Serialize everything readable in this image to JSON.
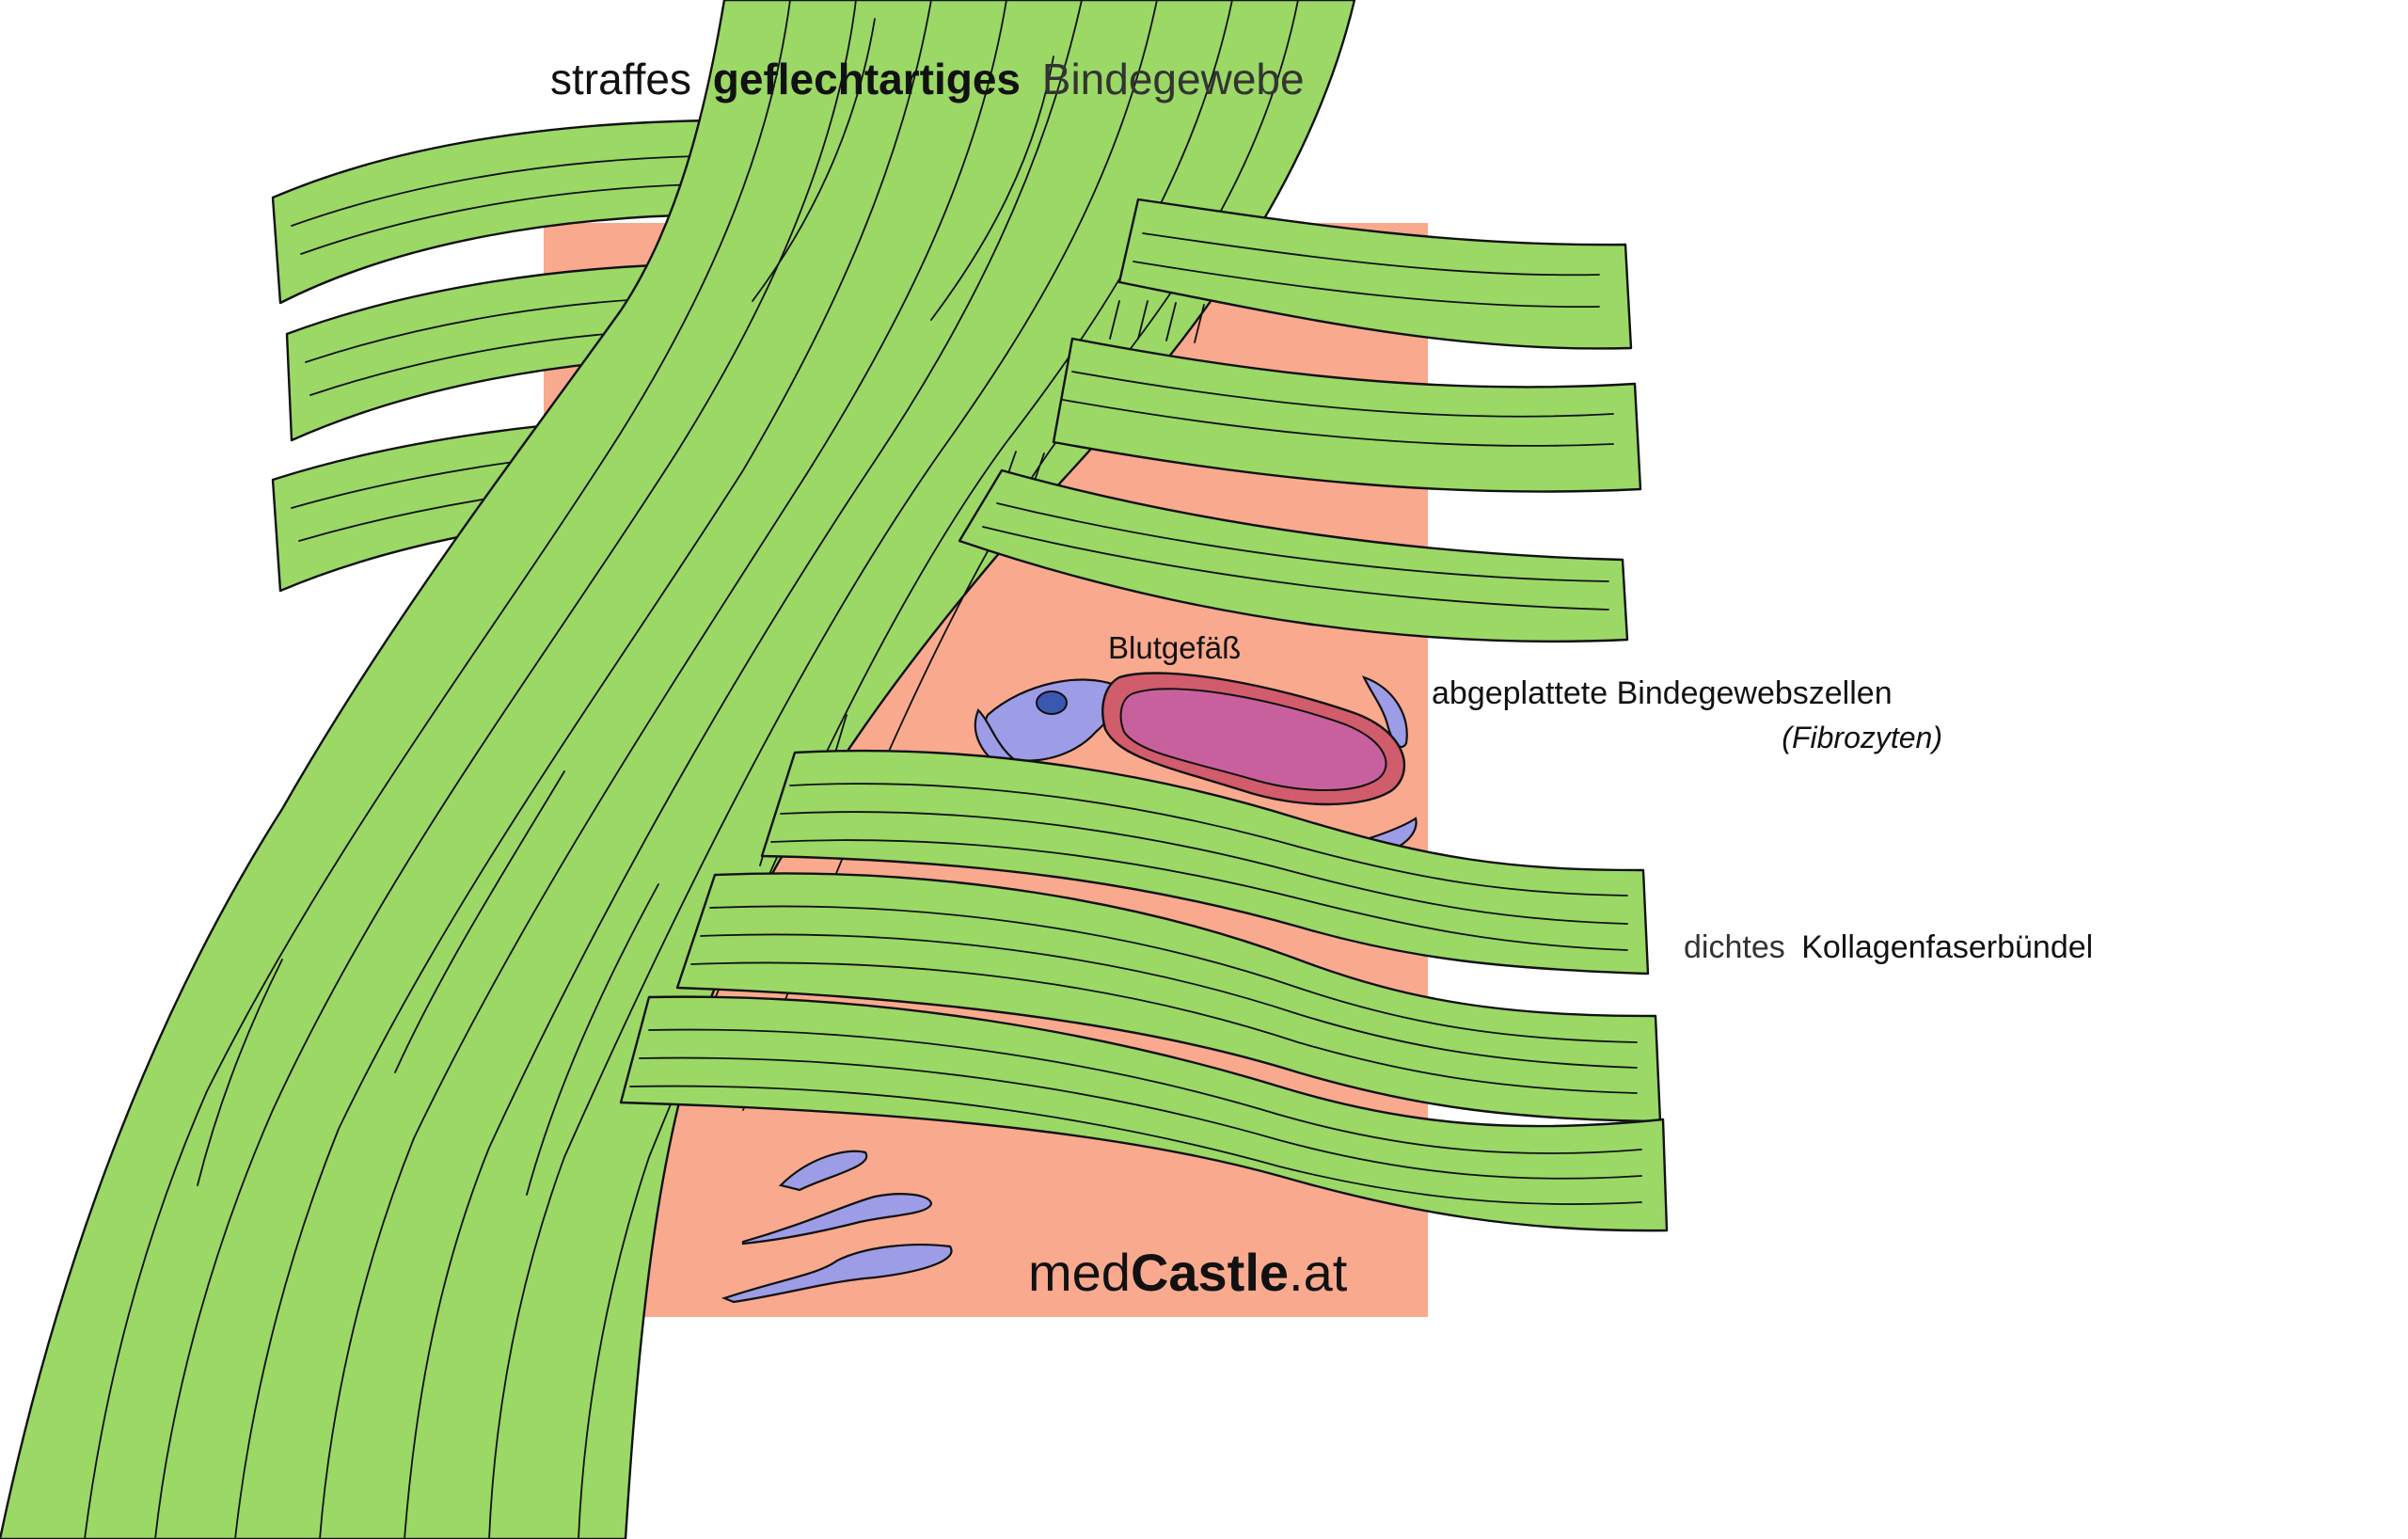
{
  "title": {
    "prefix": "straffes",
    "emphasis": "geflechtartiges",
    "suffix": "Bindegewebe"
  },
  "labels": {
    "blood_vessel": "Blutgefäß",
    "cells_main": "abgeplattete Bindegewebszellen",
    "cells_sub": "(Fibrozyten)",
    "bundle_prefix": "dichtes",
    "bundle_main": "Kollagenfaserbündel"
  },
  "watermark": {
    "prefix": "med",
    "brand": "Castle",
    "suffix": ".at"
  },
  "colors": {
    "connective_tissue_bg": "#f9a98e",
    "collagen_fiber": "#9bd866",
    "cell": "#9d9ce6",
    "cell_nucleus": "#3b58b0",
    "vessel_wall": "#d05c6c",
    "vessel_lumen": "#c9609e",
    "outline": "#111111"
  }
}
